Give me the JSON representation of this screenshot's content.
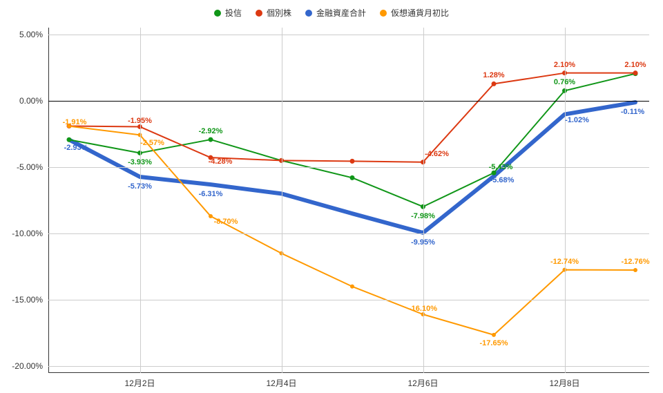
{
  "chart": {
    "type": "line",
    "background_color": "#ffffff",
    "grid_color": "#cccccc",
    "axis_color": "#333333",
    "zero_line_color": "#000000",
    "label_font_size": 12,
    "data_label_font_size": 11,
    "ylim": [
      -20,
      5
    ],
    "ytick_step": 5,
    "yticks": [
      {
        "v": 5,
        "label": "5.00%"
      },
      {
        "v": 0,
        "label": "0.00%"
      },
      {
        "v": -5,
        "label": "-5.00%"
      },
      {
        "v": -10,
        "label": "-10.00%"
      },
      {
        "v": -15,
        "label": "-15.00%"
      },
      {
        "v": -20,
        "label": "-20.00%"
      }
    ],
    "x_indices": [
      0,
      1,
      2,
      3,
      4,
      5,
      6,
      7,
      8
    ],
    "xticks": [
      {
        "i": 1,
        "label": "12月2日"
      },
      {
        "i": 3,
        "label": "12月4日"
      },
      {
        "i": 5,
        "label": "12月6日"
      },
      {
        "i": 7,
        "label": "12月8日"
      }
    ],
    "series": [
      {
        "key": "toshin",
        "name": "投信",
        "color": "#109618",
        "line_width": 2,
        "marker_radius": 3.5,
        "thick": false,
        "labels_show": true,
        "label_offset_y": -12,
        "points": [
          {
            "i": 0,
            "v": -2.93,
            "label": ""
          },
          {
            "i": 1,
            "v": -3.93,
            "label": "-3.93%",
            "oy": 14
          },
          {
            "i": 2,
            "v": -2.92,
            "label": "-2.92%"
          },
          {
            "i": 3,
            "v": -4.5,
            "label": ""
          },
          {
            "i": 4,
            "v": -5.8,
            "label": ""
          },
          {
            "i": 5,
            "v": -7.98,
            "label": "-7.98%",
            "oy": 14
          },
          {
            "i": 6,
            "v": -5.43,
            "label": "-5.43%",
            "oy": -8,
            "ox": 10
          },
          {
            "i": 7,
            "v": 0.76,
            "label": "0.76%"
          },
          {
            "i": 8,
            "v": 2.05,
            "label": ""
          }
        ]
      },
      {
        "key": "kobetsu",
        "name": "個別株",
        "color": "#dc3912",
        "line_width": 2,
        "marker_radius": 3.5,
        "thick": false,
        "labels_show": true,
        "label_offset_y": -12,
        "points": [
          {
            "i": 0,
            "v": -1.9,
            "label": ""
          },
          {
            "i": 1,
            "v": -1.95,
            "label": "-1.95%",
            "oy": -8
          },
          {
            "i": 2,
            "v": -4.28,
            "label": "-4.28%",
            "ox": 14,
            "oy": 6
          },
          {
            "i": 3,
            "v": -4.5,
            "label": ""
          },
          {
            "i": 4,
            "v": -4.55,
            "label": ""
          },
          {
            "i": 5,
            "v": -4.62,
            "label": "-4.62%",
            "ox": 20
          },
          {
            "i": 6,
            "v": 1.28,
            "label": "1.28%"
          },
          {
            "i": 7,
            "v": 2.1,
            "label": "2.10%"
          },
          {
            "i": 8,
            "v": 2.1,
            "label": "2.10%"
          }
        ]
      },
      {
        "key": "total",
        "name": "金融資産合計",
        "color": "#3366cc",
        "line_width": 6,
        "marker_radius": 0,
        "thick": true,
        "labels_show": true,
        "label_offset_y": 14,
        "points": [
          {
            "i": 0,
            "v": -2.93,
            "label": "-2.93%",
            "ox": 10,
            "oy": 12
          },
          {
            "i": 1,
            "v": -5.73,
            "label": "-5.73%",
            "oy": 14
          },
          {
            "i": 2,
            "v": -6.31,
            "label": "-6.31%",
            "oy": 14
          },
          {
            "i": 3,
            "v": -7.0,
            "label": ""
          },
          {
            "i": 4,
            "v": -8.5,
            "label": ""
          },
          {
            "i": 5,
            "v": -9.95,
            "label": "-9.95%",
            "oy": 14
          },
          {
            "i": 6,
            "v": -5.68,
            "label": "-5.68%",
            "oy": 6,
            "ox": 12
          },
          {
            "i": 7,
            "v": -1.02,
            "label": "-1.02%",
            "ox": 18,
            "oy": 8
          },
          {
            "i": 8,
            "v": -0.11,
            "label": "-0.11%",
            "ox": -4,
            "oy": 14
          }
        ]
      },
      {
        "key": "crypto",
        "name": "仮想通貨月初比",
        "color": "#ff9900",
        "line_width": 2,
        "marker_radius": 3,
        "thick": false,
        "labels_show": true,
        "label_offset_y": -12,
        "points": [
          {
            "i": 0,
            "v": -1.91,
            "label": "-1.91%",
            "ox": 8,
            "oy": -6
          },
          {
            "i": 1,
            "v": -2.57,
            "label": "-2.57%",
            "oy": 12,
            "ox": 18
          },
          {
            "i": 2,
            "v": -8.7,
            "label": "-8.70%",
            "ox": 22,
            "oy": 8
          },
          {
            "i": 3,
            "v": -11.5,
            "label": ""
          },
          {
            "i": 4,
            "v": -14.0,
            "label": ""
          },
          {
            "i": 5,
            "v": -16.1,
            "label": "-16.10%",
            "oy": -8
          },
          {
            "i": 6,
            "v": -17.65,
            "label": "-17.65%",
            "oy": 12
          },
          {
            "i": 7,
            "v": -12.74,
            "label": "-12.74%"
          },
          {
            "i": 8,
            "v": -12.76,
            "label": "-12.76%"
          }
        ]
      }
    ]
  }
}
